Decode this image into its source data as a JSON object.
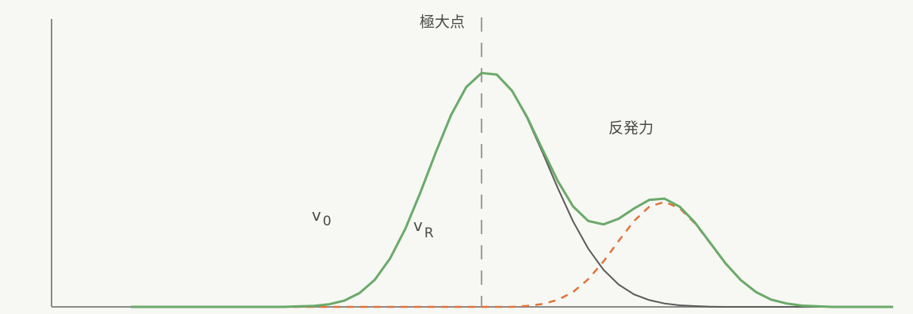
{
  "chart_data": {
    "type": "line",
    "title": "",
    "xlabel": "",
    "ylabel": "",
    "grid": false,
    "legend": "none",
    "xlim": [
      0,
      100
    ],
    "ylim": [
      0,
      100
    ],
    "x": [
      0,
      4,
      8,
      12,
      16,
      20,
      24,
      26,
      28,
      30,
      32,
      34,
      36,
      38,
      40,
      42,
      44,
      46,
      48,
      50,
      52,
      54,
      56,
      58,
      60,
      62,
      64,
      66,
      68,
      70,
      72,
      74,
      76,
      78,
      80,
      82,
      84,
      86,
      88,
      90,
      92,
      94,
      96,
      98,
      100
    ],
    "series": [
      {
        "values": [
          0.0,
          0.0,
          0.0,
          0.0,
          0.0,
          0.0,
          0.4,
          1.0,
          2.4,
          5.3,
          10.4,
          18.5,
          29.9,
          44.0,
          59.2,
          73.5,
          84.2,
          89.6,
          89.0,
          82.8,
          72.2,
          59.2,
          45.5,
          32.8,
          22.3,
          14.2,
          8.5,
          4.8,
          2.6,
          1.3,
          0.6,
          0.3,
          0.1,
          0.0,
          0.0,
          0.0,
          0.0,
          0.0,
          0.0,
          0.0,
          0.0,
          0.0,
          0.0,
          0.0,
          0.0
        ],
        "color": "#5a5a5a"
      },
      {
        "values": [
          0.0,
          0.0,
          0.0,
          0.0,
          0.0,
          0.0,
          0.0,
          0.0,
          0.0,
          0.0,
          0.0,
          0.0,
          0.0,
          0.0,
          0.0,
          0.0,
          0.0,
          0.0,
          0.0,
          0.0,
          0.4,
          1.1,
          2.7,
          5.7,
          10.6,
          17.4,
          25.3,
          32.9,
          38.4,
          40.2,
          37.8,
          32.0,
          24.4,
          16.7,
          10.3,
          5.7,
          2.8,
          1.3,
          0.5,
          0.2,
          0.0,
          0.0,
          0.0,
          0.0,
          0.0
        ],
        "color": "#e0743a"
      },
      {
        "values": [
          0.0,
          0.0,
          0.0,
          0.0,
          0.0,
          0.0,
          0.4,
          1.0,
          2.4,
          5.3,
          10.4,
          18.5,
          29.9,
          44.0,
          59.2,
          73.5,
          84.2,
          89.6,
          89.0,
          82.8,
          72.6,
          60.3,
          48.2,
          38.5,
          32.9,
          31.6,
          33.8,
          37.7,
          41.0,
          41.5,
          38.4,
          32.3,
          24.5,
          16.7,
          10.3,
          5.7,
          2.8,
          1.3,
          0.5,
          0.2,
          0.0,
          0.0,
          0.0,
          0.0,
          0.0
        ],
        "color": "#6aaa6a"
      }
    ],
    "annotations": {
      "peak": "極大点",
      "repulsion": "反発力",
      "v0_main": "v",
      "v0_sub": "0",
      "vr_main": "v",
      "vr_sub": "R"
    },
    "peak_x": 46
  }
}
